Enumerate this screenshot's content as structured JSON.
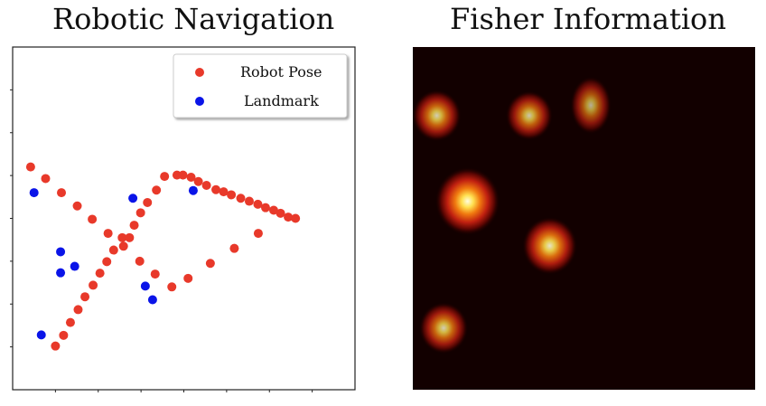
{
  "chart_data": [
    {
      "type": "scatter",
      "title": "Robotic Navigation",
      "xlabel": "",
      "ylabel": "",
      "xlim": [
        0,
        8
      ],
      "ylim": [
        0,
        8
      ],
      "grid": false,
      "legend_position": "top-right",
      "series": [
        {
          "name": "Robot Pose",
          "color": "#e8392a",
          "points": [
            [
              1.0,
              1.02
            ],
            [
              1.19,
              1.27
            ],
            [
              1.35,
              1.57
            ],
            [
              1.53,
              1.87
            ],
            [
              1.69,
              2.17
            ],
            [
              1.88,
              2.44
            ],
            [
              2.04,
              2.72
            ],
            [
              2.2,
              2.99
            ],
            [
              2.36,
              3.26
            ],
            [
              2.56,
              3.55
            ],
            [
              2.73,
              3.55
            ],
            [
              2.84,
              3.84
            ],
            [
              2.99,
              4.13
            ],
            [
              3.15,
              4.37
            ],
            [
              3.36,
              4.66
            ],
            [
              3.55,
              4.98
            ],
            [
              3.84,
              5.01
            ],
            [
              3.98,
              5.01
            ],
            [
              4.17,
              4.96
            ],
            [
              4.34,
              4.86
            ],
            [
              4.53,
              4.77
            ],
            [
              4.75,
              4.67
            ],
            [
              4.93,
              4.62
            ],
            [
              5.11,
              4.55
            ],
            [
              5.33,
              4.47
            ],
            [
              5.53,
              4.4
            ],
            [
              5.73,
              4.33
            ],
            [
              5.91,
              4.25
            ],
            [
              6.1,
              4.19
            ],
            [
              6.26,
              4.12
            ],
            [
              6.44,
              4.03
            ],
            [
              6.61,
              4.0
            ],
            [
              0.42,
              5.2
            ],
            [
              0.77,
              4.93
            ],
            [
              1.14,
              4.6
            ],
            [
              1.51,
              4.29
            ],
            [
              1.86,
              3.98
            ],
            [
              2.23,
              3.65
            ],
            [
              2.59,
              3.35
            ],
            [
              2.97,
              3.0
            ],
            [
              3.33,
              2.7
            ],
            [
              3.72,
              2.4
            ],
            [
              4.1,
              2.6
            ],
            [
              4.62,
              2.95
            ],
            [
              5.18,
              3.3
            ],
            [
              5.74,
              3.65
            ]
          ]
        },
        {
          "name": "Landmark",
          "color": "#0a14e8",
          "points": [
            [
              0.5,
              4.6
            ],
            [
              1.12,
              3.22
            ],
            [
              1.12,
              2.73
            ],
            [
              1.45,
              2.88
            ],
            [
              2.81,
              4.47
            ],
            [
              3.1,
              2.42
            ],
            [
              3.27,
              2.1
            ],
            [
              4.22,
              4.65
            ],
            [
              0.67,
              1.28
            ]
          ]
        }
      ]
    },
    {
      "type": "heatmap",
      "title": "Fisher Information",
      "xlabel": "",
      "ylabel": "",
      "colormap": "hot",
      "background_color": "#120000",
      "blobs": [
        {
          "x": 0.07,
          "y": 0.8,
          "intensity": 0.6
        },
        {
          "x": 0.34,
          "y": 0.8,
          "intensity": 0.55
        },
        {
          "x": 0.52,
          "y": 0.83,
          "intensity": 0.4
        },
        {
          "x": 0.16,
          "y": 0.55,
          "intensity": 1.0
        },
        {
          "x": 0.4,
          "y": 0.42,
          "intensity": 0.75
        },
        {
          "x": 0.09,
          "y": 0.18,
          "intensity": 0.6
        }
      ]
    }
  ]
}
